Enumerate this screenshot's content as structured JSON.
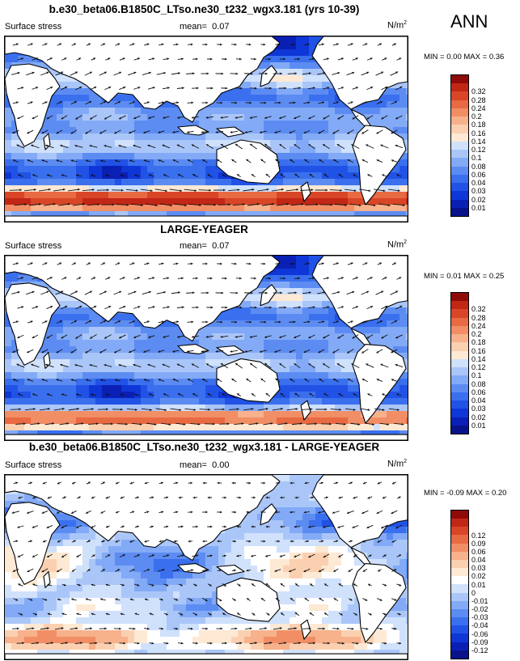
{
  "season": "ANN",
  "colors": {
    "abs_scale": [
      "#08128a",
      "#0a1fb4",
      "#0f36d6",
      "#2152e6",
      "#3a6fee",
      "#5c8cf2",
      "#83aaf6",
      "#aac6f9",
      "#d0e1fc",
      "#fde9d4",
      "#fbd0b1",
      "#f7b18b",
      "#f18e65",
      "#e86a43",
      "#d84627",
      "#c22716",
      "#8f0b08"
    ],
    "diff_scale": [
      "#08128a",
      "#0a1fb4",
      "#0f36d6",
      "#2152e6",
      "#3a6fee",
      "#5c8cf2",
      "#83aaf6",
      "#aac6f9",
      "#d0e1fc",
      "#ffffff",
      "#fde9d4",
      "#fbd0b1",
      "#f7b18b",
      "#f18e65",
      "#e86a43",
      "#d84627",
      "#c22716",
      "#8f0b08"
    ],
    "land": "#ffffff",
    "coast": "#000000",
    "vector": "#111111"
  },
  "panels": [
    {
      "title": "b.e30_beta06.B1850C_LTso.ne30_t232_wgx3.181 (yrs 10-39)",
      "variable": "Surface stress",
      "mean_label": "mean=",
      "mean": "0.07",
      "units": "N/m",
      "units_exp": "2",
      "min_label": "MIN =",
      "min": "0.00",
      "max_label": "MAX =",
      "max": "0.36",
      "levels": [
        "0.01",
        "0.02",
        "0.03",
        "0.04",
        "0.06",
        "0.08",
        "0.1",
        "0.12",
        "0.14",
        "0.16",
        "0.18",
        "0.2",
        "0.24",
        "0.28",
        "0.32"
      ],
      "field": "abs",
      "southern_strength": 0.3
    },
    {
      "title": "LARGE-YEAGER",
      "variable": "Surface stress",
      "mean_label": "mean=",
      "mean": "0.07",
      "units": "N/m",
      "units_exp": "2",
      "min_label": "MIN =",
      "min": "0.01",
      "max_label": "MAX =",
      "max": "0.25",
      "levels": [
        "0.01",
        "0.02",
        "0.03",
        "0.04",
        "0.06",
        "0.08",
        "0.1",
        "0.12",
        "0.14",
        "0.16",
        "0.18",
        "0.2",
        "0.24",
        "0.28",
        "0.32"
      ],
      "field": "abs",
      "southern_strength": 0.22
    },
    {
      "title": "b.e30_beta06.B1850C_LTso.ne30_t232_wgx3.181 - LARGE-YEAGER",
      "variable": "Surface stress",
      "mean_label": "mean=",
      "mean": "0.00",
      "units": "N/m",
      "units_exp": "2",
      "min_label": "MIN =",
      "min": "-0.09",
      "max_label": "MAX =",
      "max": "0.20",
      "levels": [
        "-0.12",
        "-0.09",
        "-0.06",
        "-0.04",
        "-0.03",
        "-0.02",
        "-0.01",
        "0",
        "0.01",
        "0.02",
        "0.03",
        "0.04",
        "0.06",
        "0.09",
        "0.12"
      ],
      "field": "diff",
      "southern_strength": 0.05
    }
  ],
  "chart_data": [
    {
      "type": "heatmap",
      "title": "b.e30_beta06.B1850C_LTso.ne30_t232_wgx3.181 (yrs 10-39)",
      "variable": "Surface stress",
      "units": "N/m2",
      "mean": 0.07,
      "min": 0.0,
      "max": 0.36,
      "contour_levels": [
        0.01,
        0.02,
        0.03,
        0.04,
        0.06,
        0.08,
        0.1,
        0.12,
        0.14,
        0.16,
        0.18,
        0.2,
        0.24,
        0.28,
        0.32
      ],
      "overlay": "wind stress vectors",
      "xlim": [
        30,
        390
      ],
      "ylim": [
        -90,
        90
      ]
    },
    {
      "type": "heatmap",
      "title": "LARGE-YEAGER",
      "variable": "Surface stress",
      "units": "N/m2",
      "mean": 0.07,
      "min": 0.01,
      "max": 0.25,
      "contour_levels": [
        0.01,
        0.02,
        0.03,
        0.04,
        0.06,
        0.08,
        0.1,
        0.12,
        0.14,
        0.16,
        0.18,
        0.2,
        0.24,
        0.28,
        0.32
      ],
      "overlay": "wind stress vectors",
      "xlim": [
        30,
        390
      ],
      "ylim": [
        -90,
        90
      ]
    },
    {
      "type": "heatmap",
      "title": "b.e30_beta06.B1850C_LTso.ne30_t232_wgx3.181 - LARGE-YEAGER",
      "variable": "Surface stress",
      "units": "N/m2",
      "mean": 0.0,
      "min": -0.09,
      "max": 0.2,
      "contour_levels": [
        -0.12,
        -0.09,
        -0.06,
        -0.04,
        -0.03,
        -0.02,
        -0.01,
        0,
        0.01,
        0.02,
        0.03,
        0.04,
        0.06,
        0.09,
        0.12
      ],
      "overlay": "wind stress difference vectors",
      "xlim": [
        30,
        390
      ],
      "ylim": [
        -90,
        90
      ]
    }
  ]
}
